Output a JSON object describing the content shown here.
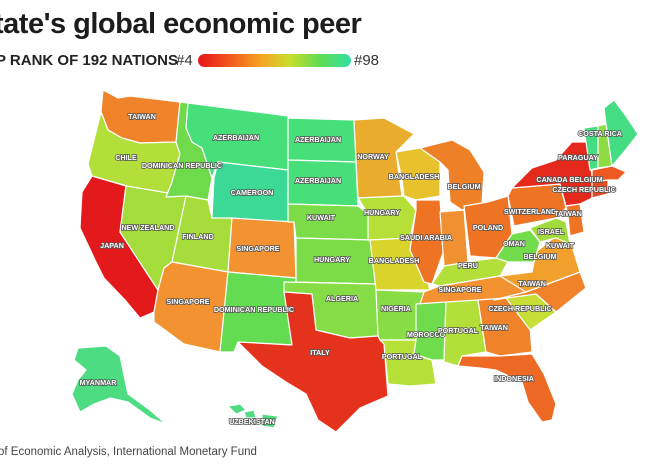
{
  "title": "tate's global economic peer",
  "legend": {
    "label": "P RANK OF 192 NATIONS",
    "min_label": "#4",
    "max_label": "#98",
    "gradient": [
      "#e8141c",
      "#f25d1c",
      "#f5a623",
      "#c8de2c",
      "#5fdc54",
      "#33e0a2"
    ]
  },
  "source": "of Economic Analysis, International Monetary Fund",
  "states": [
    {
      "id": "WA",
      "label": "TAIWAN",
      "color": "#f0832a"
    },
    {
      "id": "OR",
      "label": "CHILE",
      "color": "#b3df3a"
    },
    {
      "id": "CA",
      "label": "JAPAN",
      "color": "#e3191c"
    },
    {
      "id": "NV",
      "label": "NEW ZEALAND",
      "color": "#a4dc3c"
    },
    {
      "id": "ID",
      "label": "DOMINICAN REPUBLIC",
      "color": "#6fdb4c"
    },
    {
      "id": "MT",
      "label": "AZERBAIJAN",
      "color": "#46df7a"
    },
    {
      "id": "WY",
      "label": "CAMEROON",
      "color": "#3cd996"
    },
    {
      "id": "UT",
      "label": "FINLAND",
      "color": "#a7dd3a"
    },
    {
      "id": "AZ",
      "label": "SINGAPORE",
      "color": "#f29230"
    },
    {
      "id": "CO",
      "label": "SINGAPORE",
      "color": "#f29230"
    },
    {
      "id": "NM",
      "label": "DOMINICAN REPUBLIC",
      "color": "#63dc52"
    },
    {
      "id": "ND",
      "label": "AZERBAIJAN",
      "color": "#46df7a"
    },
    {
      "id": "SD",
      "label": "AZERBAIJAN",
      "color": "#46df7a"
    },
    {
      "id": "NE",
      "label": "KUWAIT",
      "color": "#7cdc48"
    },
    {
      "id": "KS",
      "label": "HUNGARY",
      "color": "#7cdc48"
    },
    {
      "id": "OK",
      "label": "ALGERIA",
      "color": "#86dc44"
    },
    {
      "id": "TX",
      "label": "ITALY",
      "color": "#e5321c"
    },
    {
      "id": "MN",
      "label": "NORWAY",
      "color": "#eaac2c"
    },
    {
      "id": "IA",
      "label": "HUNGARY",
      "color": "#b6df38"
    },
    {
      "id": "MO",
      "label": "BANGLADESH",
      "color": "#d8d42c"
    },
    {
      "id": "AR",
      "label": "NIGERIA",
      "color": "#88dc44"
    },
    {
      "id": "LA",
      "label": "PORTUGAL",
      "color": "#b6df38"
    },
    {
      "id": "WI",
      "label": "BANGLADESH",
      "color": "#e8c22c"
    },
    {
      "id": "IL",
      "label": "SAUDI ARABIA",
      "color": "#ee7424"
    },
    {
      "id": "MI",
      "label": "BELGIUM",
      "color": "#ee8028"
    },
    {
      "id": "IN",
      "label": "POLAND",
      "color": "#f09030"
    },
    {
      "id": "OH",
      "label": "SWITZERLAND",
      "color": "#ee7424"
    },
    {
      "id": "KY",
      "label": "PERU",
      "color": "#b2df3a"
    },
    {
      "id": "TN",
      "label": "SINGAPORE",
      "color": "#f29230"
    },
    {
      "id": "MS",
      "label": "MOROCCO",
      "color": "#6fdc4e"
    },
    {
      "id": "AL",
      "label": "PORTUGAL",
      "color": "#b2df3a"
    },
    {
      "id": "GA",
      "label": "TAIWAN",
      "color": "#f0832a"
    },
    {
      "id": "FL",
      "label": "INDONESIA",
      "color": "#ee6a24"
    },
    {
      "id": "SC",
      "label": "CZECH REPUBLIC",
      "color": "#c6de36"
    },
    {
      "id": "NC",
      "label": "TAIWAN",
      "color": "#f0832a"
    },
    {
      "id": "VA",
      "label": "BELGIUM",
      "color": "#f2a02c"
    },
    {
      "id": "WV",
      "label": "OMAN",
      "color": "#72dc4c"
    },
    {
      "id": "PA",
      "label": "TAIWAN",
      "color": "#ee7424"
    },
    {
      "id": "NY",
      "label": "CANADA",
      "color": "#e4281c"
    },
    {
      "id": "NJ",
      "label": "ISRAEL",
      "color": "#ee7424"
    },
    {
      "id": "MD",
      "label": "KUWAIT",
      "color": "#a2dc3c"
    },
    {
      "id": "CT",
      "label": "CZECH REPUBLIC",
      "color": "#e84a20"
    },
    {
      "id": "MA",
      "label": "BELGIUM",
      "color": "#f05a22"
    },
    {
      "id": "VT",
      "label": "PARAGUAY",
      "color": "#44dd84"
    },
    {
      "id": "NH",
      "label": "",
      "color": "#8edc44"
    },
    {
      "id": "ME",
      "label": "COSTA RICA",
      "color": "#44dd84"
    },
    {
      "id": "AK",
      "label": "MYANMAR",
      "color": "#4edc82"
    },
    {
      "id": "HI",
      "label": "UZBEKISTAN",
      "color": "#4edc82"
    }
  ]
}
